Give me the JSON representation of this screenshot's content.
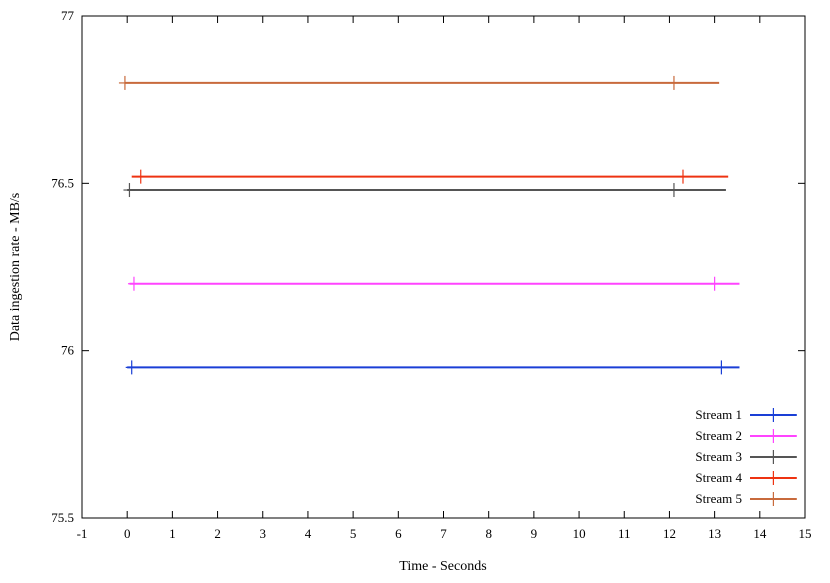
{
  "chart_data": {
    "type": "line",
    "title": "",
    "xlabel": "Time - Seconds",
    "ylabel": "Data ingestion rate - MB/s",
    "xlim": [
      -1,
      15
    ],
    "ylim": [
      75.5,
      77
    ],
    "x_ticks": [
      -1,
      0,
      1,
      2,
      3,
      4,
      5,
      6,
      7,
      8,
      9,
      10,
      11,
      12,
      13,
      14,
      15
    ],
    "y_ticks": [
      75.5,
      76,
      76.5,
      77
    ],
    "x_tick_labels": [
      "-1",
      "0",
      "1",
      "2",
      "3",
      "4",
      "5",
      "6",
      "7",
      "8",
      "9",
      "10",
      "11",
      "12",
      "13",
      "14",
      "15"
    ],
    "y_tick_labels": [
      "75.5",
      "76",
      "76.5",
      "77"
    ],
    "grid": false,
    "legend_position": "bottom-right",
    "series": [
      {
        "name": "Stream 1",
        "color": "#1a3fd6",
        "x": [
          0.0,
          13.55
        ],
        "y": [
          75.95,
          75.95
        ],
        "markers": [
          0.1,
          13.15
        ]
      },
      {
        "name": "Stream 2",
        "color": "#ff44ff",
        "x": [
          0.05,
          13.55
        ],
        "y": [
          76.2,
          76.2
        ],
        "markers": [
          0.15,
          13.0
        ]
      },
      {
        "name": "Stream 3",
        "color": "#555555",
        "x": [
          0.0,
          13.25
        ],
        "y": [
          76.48,
          76.48
        ],
        "markers": [
          0.05,
          12.1
        ]
      },
      {
        "name": "Stream 4",
        "color": "#ee3311",
        "x": [
          0.1,
          13.3
        ],
        "y": [
          76.52,
          76.52
        ],
        "markers": [
          0.3,
          12.3
        ]
      },
      {
        "name": "Stream 5",
        "color": "#c86a3c",
        "x": [
          -0.05,
          13.1
        ],
        "y": [
          76.8,
          76.8
        ],
        "markers": [
          -0.05,
          12.1
        ]
      }
    ]
  }
}
